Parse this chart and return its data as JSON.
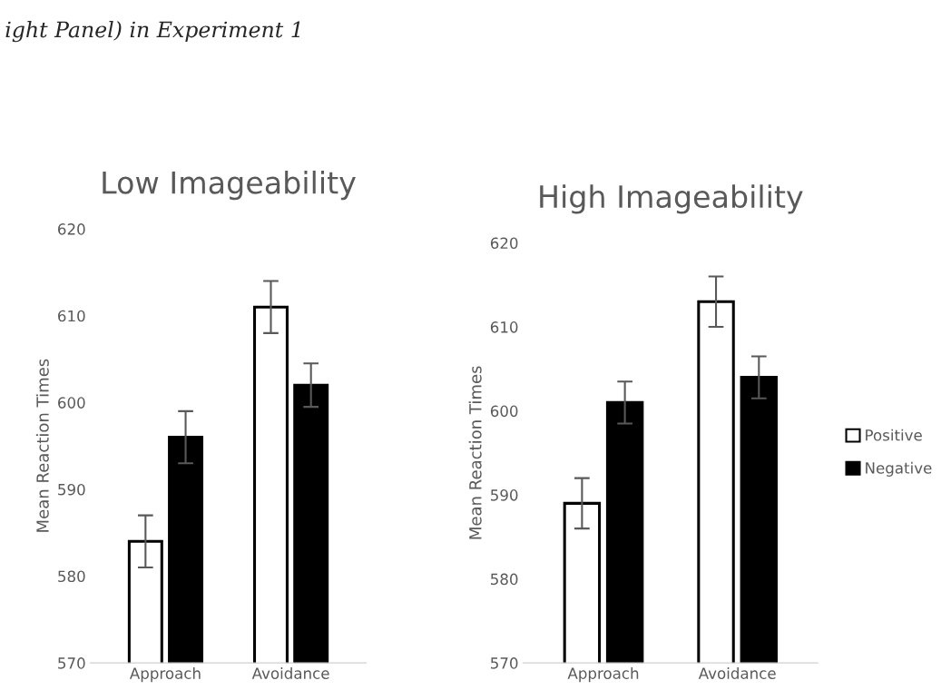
{
  "chart_data": [
    {
      "type": "bar",
      "title": "Low Imageability",
      "ylabel": "Mean Reaction Times",
      "categories": [
        "Approach",
        "Avoidance"
      ],
      "series": [
        {
          "color": "#ffffff",
          "values": [
            584,
            611
          ],
          "errors": [
            3,
            3
          ]
        },
        {
          "color": "#000000",
          "values": [
            596,
            602
          ],
          "errors": [
            3,
            2.5
          ]
        }
      ],
      "ylim": [
        570,
        620
      ],
      "yticks": [
        570,
        580,
        590,
        600,
        610,
        620
      ],
      "grid": false,
      "legend": false,
      "annotations": [
        "ight Panel) in Experiment 1"
      ]
    },
    {
      "type": "bar",
      "title": "High Imageability",
      "ylabel": "Mean Reaction Times",
      "categories": [
        "Approach",
        "Avoidance"
      ],
      "series": [
        {
          "name": "Positive",
          "color": "#ffffff",
          "values": [
            589,
            613
          ],
          "errors": [
            3,
            3
          ]
        },
        {
          "name": "Negative",
          "color": "#000000",
          "values": [
            601,
            604
          ],
          "errors": [
            2.5,
            2.5
          ]
        }
      ],
      "ylim": [
        570,
        620
      ],
      "yticks": [
        570,
        580,
        590,
        600,
        610,
        620
      ],
      "grid": false,
      "legend": "right"
    }
  ]
}
